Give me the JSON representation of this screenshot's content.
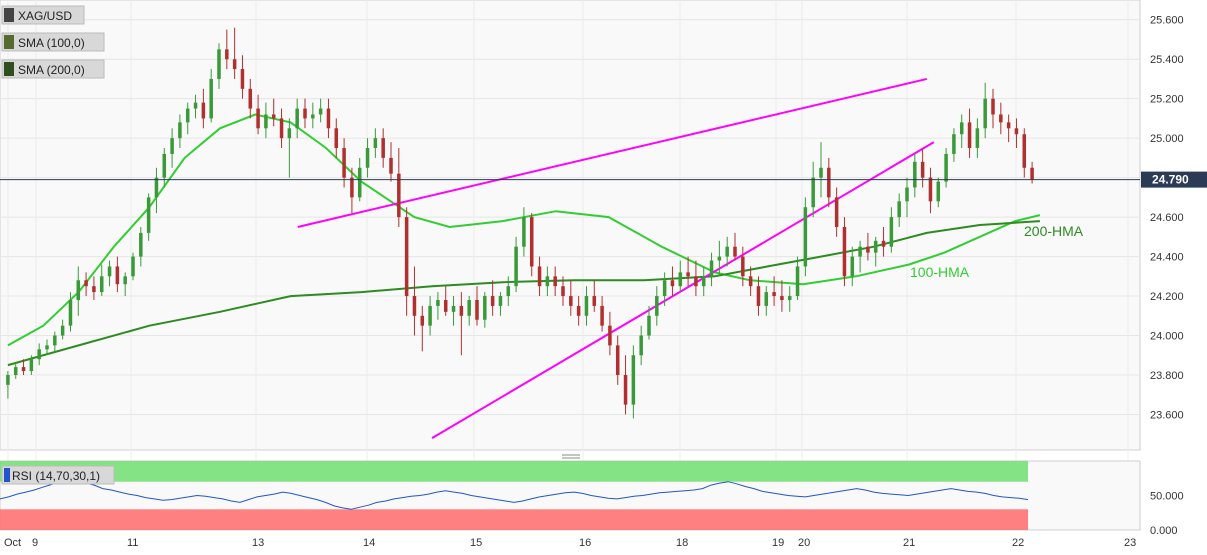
{
  "chart_data": {
    "type": "candlestick",
    "symbol": "XAG/USD",
    "legend": [
      {
        "label": "XAG/USD",
        "color": "#333333"
      },
      {
        "label": "SMA (100,0)",
        "color": "#6b8e23"
      },
      {
        "label": "SMA (200,0)",
        "color": "#556b2f"
      }
    ],
    "price_axis": {
      "ylim": [
        23.42,
        25.7
      ],
      "ticks": [
        "25.600",
        "25.400",
        "25.200",
        "25.000",
        "24.800",
        "24.600",
        "24.400",
        "24.200",
        "24.000",
        "23.800",
        "23.600"
      ]
    },
    "x_labels": [
      "Oct",
      "9",
      "11",
      "13",
      "14",
      "15",
      "16",
      "18",
      "19",
      "20",
      "21",
      "22",
      "23"
    ],
    "last_price": {
      "value": 24.79,
      "label": "24.790"
    },
    "candles": [
      [
        23.75,
        23.82,
        23.68,
        23.8
      ],
      [
        23.8,
        23.86,
        23.78,
        23.84
      ],
      [
        23.84,
        23.88,
        23.8,
        23.82
      ],
      [
        23.82,
        23.9,
        23.8,
        23.88
      ],
      [
        23.88,
        23.96,
        23.85,
        23.93
      ],
      [
        23.93,
        23.98,
        23.9,
        23.95
      ],
      [
        23.95,
        24.02,
        23.92,
        24.0
      ],
      [
        24.0,
        24.08,
        23.98,
        24.05
      ],
      [
        24.05,
        24.22,
        24.02,
        24.18
      ],
      [
        24.18,
        24.35,
        24.1,
        24.28
      ],
      [
        24.28,
        24.32,
        24.2,
        24.25
      ],
      [
        24.25,
        24.3,
        24.18,
        24.22
      ],
      [
        24.22,
        24.36,
        24.2,
        24.3
      ],
      [
        24.3,
        24.38,
        24.25,
        24.35
      ],
      [
        24.35,
        24.4,
        24.22,
        24.26
      ],
      [
        24.26,
        24.32,
        24.2,
        24.3
      ],
      [
        24.3,
        24.42,
        24.28,
        24.4
      ],
      [
        24.4,
        24.55,
        24.35,
        24.52
      ],
      [
        24.52,
        24.72,
        24.48,
        24.7
      ],
      [
        24.7,
        24.85,
        24.62,
        24.8
      ],
      [
        24.8,
        24.95,
        24.75,
        24.92
      ],
      [
        24.92,
        25.05,
        24.85,
        25.0
      ],
      [
        25.0,
        25.12,
        24.95,
        25.08
      ],
      [
        25.08,
        25.18,
        25.02,
        25.15
      ],
      [
        25.15,
        25.22,
        25.1,
        25.18
      ],
      [
        25.18,
        25.25,
        25.05,
        25.1
      ],
      [
        25.1,
        25.35,
        25.08,
        25.3
      ],
      [
        25.3,
        25.48,
        25.25,
        25.45
      ],
      [
        25.45,
        25.55,
        25.35,
        25.4
      ],
      [
        25.4,
        25.56,
        25.3,
        25.35
      ],
      [
        25.35,
        25.42,
        25.2,
        25.25
      ],
      [
        25.25,
        25.3,
        25.1,
        25.15
      ],
      [
        25.15,
        25.22,
        25.02,
        25.05
      ],
      [
        25.05,
        25.18,
        25.0,
        25.12
      ],
      [
        25.12,
        25.2,
        25.06,
        25.1
      ],
      [
        25.1,
        25.15,
        24.95,
        25.0
      ],
      [
        25.0,
        25.1,
        24.8,
        25.05
      ],
      [
        25.05,
        25.2,
        25.0,
        25.15
      ],
      [
        25.15,
        25.2,
        25.05,
        25.1
      ],
      [
        25.1,
        25.18,
        25.05,
        25.12
      ],
      [
        25.12,
        25.2,
        25.08,
        25.15
      ],
      [
        25.15,
        25.2,
        25.0,
        25.05
      ],
      [
        25.05,
        25.1,
        24.9,
        24.95
      ],
      [
        24.95,
        25.0,
        24.75,
        24.8
      ],
      [
        24.8,
        24.85,
        24.62,
        24.7
      ],
      [
        24.7,
        24.9,
        24.68,
        24.85
      ],
      [
        24.85,
        25.0,
        24.8,
        24.95
      ],
      [
        24.95,
        25.05,
        24.9,
        25.0
      ],
      [
        25.0,
        25.05,
        24.85,
        24.9
      ],
      [
        24.9,
        24.98,
        24.78,
        24.82
      ],
      [
        24.82,
        24.95,
        24.55,
        24.6
      ],
      [
        24.6,
        24.65,
        24.1,
        24.2
      ],
      [
        24.2,
        24.35,
        24.0,
        24.1
      ],
      [
        24.1,
        24.15,
        23.92,
        24.05
      ],
      [
        24.05,
        24.2,
        24.0,
        24.15
      ],
      [
        24.15,
        24.22,
        24.08,
        24.18
      ],
      [
        24.18,
        24.25,
        24.1,
        24.12
      ],
      [
        24.12,
        24.2,
        24.05,
        24.15
      ],
      [
        24.15,
        24.22,
        23.9,
        24.1
      ],
      [
        24.1,
        24.2,
        24.05,
        24.18
      ],
      [
        24.18,
        24.25,
        24.05,
        24.08
      ],
      [
        24.08,
        24.22,
        24.04,
        24.2
      ],
      [
        24.2,
        24.28,
        24.1,
        24.15
      ],
      [
        24.15,
        24.22,
        24.1,
        24.2
      ],
      [
        24.2,
        24.3,
        24.15,
        24.25
      ],
      [
        24.25,
        24.5,
        24.22,
        24.45
      ],
      [
        24.45,
        24.65,
        24.4,
        24.6
      ],
      [
        24.6,
        24.62,
        24.3,
        24.35
      ],
      [
        24.35,
        24.4,
        24.2,
        24.25
      ],
      [
        24.25,
        24.35,
        24.2,
        24.3
      ],
      [
        24.3,
        24.35,
        24.2,
        24.25
      ],
      [
        24.25,
        24.3,
        24.15,
        24.2
      ],
      [
        24.2,
        24.28,
        24.1,
        24.15
      ],
      [
        24.15,
        24.2,
        24.05,
        24.1
      ],
      [
        24.1,
        24.25,
        24.05,
        24.2
      ],
      [
        24.2,
        24.28,
        24.12,
        24.15
      ],
      [
        24.15,
        24.2,
        24.02,
        24.05
      ],
      [
        24.05,
        24.12,
        23.9,
        23.95
      ],
      [
        23.95,
        24.0,
        23.75,
        23.8
      ],
      [
        23.8,
        23.9,
        23.6,
        23.65
      ],
      [
        23.65,
        23.95,
        23.58,
        23.9
      ],
      [
        23.9,
        24.05,
        23.85,
        24.0
      ],
      [
        24.0,
        24.15,
        23.98,
        24.1
      ],
      [
        24.1,
        24.25,
        24.05,
        24.2
      ],
      [
        24.2,
        24.32,
        24.15,
        24.28
      ],
      [
        24.28,
        24.35,
        24.2,
        24.25
      ],
      [
        24.25,
        24.38,
        24.22,
        24.32
      ],
      [
        24.32,
        24.4,
        24.25,
        24.3
      ],
      [
        24.3,
        24.38,
        24.2,
        24.25
      ],
      [
        24.25,
        24.35,
        24.2,
        24.3
      ],
      [
        24.3,
        24.42,
        24.25,
        24.38
      ],
      [
        24.38,
        24.48,
        24.3,
        24.4
      ],
      [
        24.4,
        24.5,
        24.35,
        24.45
      ],
      [
        24.45,
        24.52,
        24.38,
        24.4
      ],
      [
        24.4,
        24.45,
        24.25,
        24.3
      ],
      [
        24.3,
        24.35,
        24.2,
        24.25
      ],
      [
        24.25,
        24.3,
        24.1,
        24.15
      ],
      [
        24.15,
        24.25,
        24.1,
        24.22
      ],
      [
        24.22,
        24.3,
        24.15,
        24.2
      ],
      [
        24.2,
        24.28,
        24.12,
        24.18
      ],
      [
        24.18,
        24.25,
        24.12,
        24.2
      ],
      [
        24.2,
        24.4,
        24.18,
        24.35
      ],
      [
        24.35,
        24.7,
        24.3,
        24.65
      ],
      [
        24.65,
        24.88,
        24.6,
        24.8
      ],
      [
        24.8,
        24.98,
        24.7,
        24.85
      ],
      [
        24.85,
        24.9,
        24.65,
        24.7
      ],
      [
        24.7,
        24.75,
        24.5,
        24.55
      ],
      [
        24.55,
        24.6,
        24.25,
        24.3
      ],
      [
        24.3,
        24.45,
        24.25,
        24.4
      ],
      [
        24.4,
        24.48,
        24.32,
        24.45
      ],
      [
        24.45,
        24.52,
        24.38,
        24.42
      ],
      [
        24.42,
        24.5,
        24.35,
        24.48
      ],
      [
        24.48,
        24.55,
        24.4,
        24.45
      ],
      [
        24.45,
        24.65,
        24.42,
        24.6
      ],
      [
        24.6,
        24.72,
        24.55,
        24.68
      ],
      [
        24.68,
        24.8,
        24.6,
        24.75
      ],
      [
        24.75,
        24.92,
        24.7,
        24.88
      ],
      [
        24.88,
        24.95,
        24.75,
        24.8
      ],
      [
        24.8,
        24.85,
        24.62,
        24.68
      ],
      [
        24.68,
        24.8,
        24.65,
        24.78
      ],
      [
        24.78,
        24.95,
        24.75,
        24.92
      ],
      [
        24.92,
        25.05,
        24.88,
        25.02
      ],
      [
        25.02,
        25.12,
        24.95,
        25.08
      ],
      [
        25.08,
        25.15,
        24.9,
        24.95
      ],
      [
        24.95,
        25.1,
        24.9,
        25.05
      ],
      [
        25.05,
        25.28,
        25.0,
        25.2
      ],
      [
        25.2,
        25.25,
        25.05,
        25.12
      ],
      [
        25.12,
        25.18,
        25.02,
        25.08
      ],
      [
        25.08,
        25.12,
        24.98,
        25.05
      ],
      [
        25.05,
        25.1,
        24.95,
        25.02
      ],
      [
        25.02,
        25.05,
        24.8,
        24.85
      ],
      [
        24.85,
        24.88,
        24.77,
        24.79
      ]
    ],
    "series": [
      {
        "name": "100-HMA",
        "color": "#32cd32",
        "points": [
          [
            0,
            23.95
          ],
          [
            10,
            24.05
          ],
          [
            20,
            24.22
          ],
          [
            30,
            24.45
          ],
          [
            40,
            24.65
          ],
          [
            50,
            24.9
          ],
          [
            60,
            25.05
          ],
          [
            70,
            25.12
          ],
          [
            80,
            25.08
          ],
          [
            90,
            24.95
          ],
          [
            100,
            24.78
          ],
          [
            115,
            24.6
          ],
          [
            125,
            24.55
          ],
          [
            140,
            24.58
          ],
          [
            155,
            24.63
          ],
          [
            170,
            24.6
          ],
          [
            185,
            24.45
          ],
          [
            200,
            24.32
          ],
          [
            210,
            24.28
          ],
          [
            225,
            24.26
          ],
          [
            240,
            24.3
          ],
          [
            255,
            24.36
          ],
          [
            265,
            24.42
          ],
          [
            275,
            24.5
          ],
          [
            285,
            24.58
          ],
          [
            292,
            24.61
          ]
        ]
      },
      {
        "name": "200-HMA",
        "color": "#2e8b22",
        "points": [
          [
            0,
            23.85
          ],
          [
            20,
            23.95
          ],
          [
            40,
            24.05
          ],
          [
            60,
            24.12
          ],
          [
            80,
            24.2
          ],
          [
            100,
            24.22
          ],
          [
            120,
            24.25
          ],
          [
            140,
            24.27
          ],
          [
            160,
            24.28
          ],
          [
            180,
            24.28
          ],
          [
            200,
            24.3
          ],
          [
            215,
            24.35
          ],
          [
            230,
            24.4
          ],
          [
            245,
            24.45
          ],
          [
            260,
            24.52
          ],
          [
            275,
            24.56
          ],
          [
            292,
            24.58
          ]
        ]
      }
    ],
    "trendlines": [
      {
        "color": "#ff00ff",
        "from": [
          82,
          24.55
        ],
        "to": [
          260,
          25.3
        ]
      },
      {
        "color": "#ff00ff",
        "from": [
          120,
          23.48
        ],
        "to": [
          262,
          24.98
        ]
      }
    ],
    "annotations": [
      {
        "text": "200-HMA",
        "color": "#2e8b22"
      },
      {
        "text": "100-HMA",
        "color": "#32cd32"
      }
    ],
    "rsi": {
      "label": "RSI (14,70,30,1)",
      "ylim": [
        0,
        100
      ],
      "ticks": [
        "50.000",
        "0.000"
      ],
      "overbought": 70,
      "oversold": 30,
      "values": [
        45,
        48,
        52,
        55,
        58,
        62,
        66,
        70,
        72,
        71,
        68,
        65,
        60,
        58,
        55,
        52,
        50,
        47,
        45,
        43,
        44,
        46,
        48,
        50,
        49,
        47,
        45,
        42,
        40,
        44,
        48,
        50,
        52,
        55,
        53,
        50,
        47,
        44,
        40,
        35,
        32,
        30,
        33,
        36,
        40,
        42,
        45,
        47,
        49,
        50,
        52,
        55,
        57,
        55,
        53,
        50,
        48,
        46,
        44,
        42,
        40,
        42,
        45,
        48,
        50,
        52,
        54,
        55,
        53,
        50,
        48,
        46,
        45,
        47,
        49,
        50,
        52,
        54,
        55,
        56,
        57,
        58,
        60,
        65,
        68,
        70,
        67,
        63,
        60,
        56,
        54,
        52,
        50,
        49,
        48,
        50,
        52,
        54,
        56,
        58,
        60,
        58,
        55,
        53,
        52,
        51,
        50,
        52,
        54,
        56,
        58,
        60,
        58,
        56,
        55,
        53,
        50,
        48,
        47,
        46,
        44
      ]
    }
  }
}
